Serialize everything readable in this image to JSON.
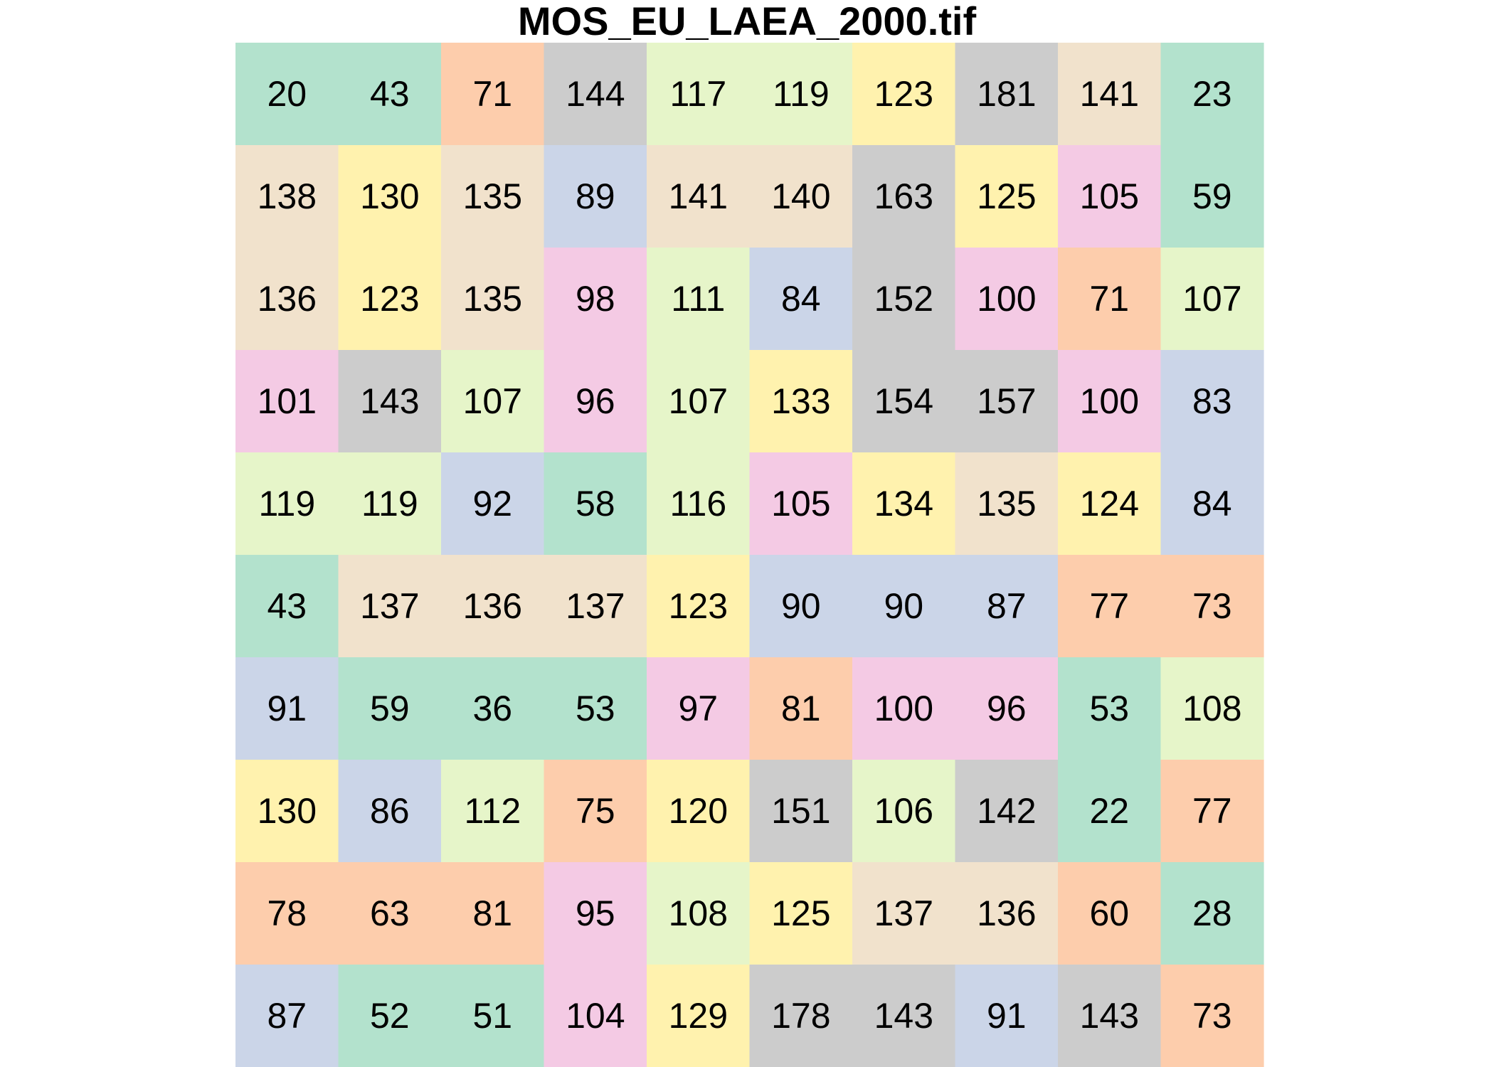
{
  "chart_data": {
    "type": "heatmap",
    "title": "MOS_EU_LAEA_2000.tif",
    "xlabel": "",
    "ylabel": "",
    "grid": false,
    "legend": "none",
    "rows": 10,
    "cols": 10,
    "values": [
      [
        20,
        43,
        71,
        144,
        117,
        119,
        123,
        181,
        141,
        23
      ],
      [
        138,
        130,
        135,
        89,
        141,
        140,
        163,
        125,
        105,
        59
      ],
      [
        136,
        123,
        135,
        98,
        111,
        84,
        152,
        100,
        71,
        107
      ],
      [
        101,
        143,
        107,
        96,
        107,
        133,
        154,
        157,
        100,
        83
      ],
      [
        119,
        119,
        92,
        58,
        116,
        105,
        134,
        135,
        124,
        84
      ],
      [
        43,
        137,
        136,
        137,
        123,
        90,
        90,
        87,
        77,
        73
      ],
      [
        91,
        59,
        36,
        53,
        97,
        81,
        100,
        96,
        53,
        108
      ],
      [
        130,
        86,
        112,
        75,
        120,
        151,
        106,
        142,
        22,
        77
      ],
      [
        78,
        63,
        81,
        95,
        108,
        125,
        137,
        136,
        60,
        28
      ],
      [
        87,
        52,
        51,
        104,
        129,
        178,
        143,
        91,
        143,
        73
      ]
    ],
    "fill_colors": [
      [
        "#b3e2cd",
        "#b3e2cd",
        "#fdcdac",
        "#cccccc",
        "#e6f5c9",
        "#e6f5c9",
        "#fff2ae",
        "#cccccc",
        "#f1e2cc",
        "#b3e2cd"
      ],
      [
        "#f1e2cc",
        "#fff2ae",
        "#f1e2cc",
        "#cbd5e8",
        "#f1e2cc",
        "#f1e2cc",
        "#cccccc",
        "#fff2ae",
        "#f4cae4",
        "#b3e2cd"
      ],
      [
        "#f1e2cc",
        "#fff2ae",
        "#f1e2cc",
        "#f4cae4",
        "#e6f5c9",
        "#cbd5e8",
        "#cccccc",
        "#f4cae4",
        "#fdcdac",
        "#e6f5c9"
      ],
      [
        "#f4cae4",
        "#cccccc",
        "#e6f5c9",
        "#f4cae4",
        "#e6f5c9",
        "#fff2ae",
        "#cccccc",
        "#cccccc",
        "#f4cae4",
        "#cbd5e8"
      ],
      [
        "#e6f5c9",
        "#e6f5c9",
        "#cbd5e8",
        "#b3e2cd",
        "#e6f5c9",
        "#f4cae4",
        "#fff2ae",
        "#f1e2cc",
        "#fff2ae",
        "#cbd5e8"
      ],
      [
        "#b3e2cd",
        "#f1e2cc",
        "#f1e2cc",
        "#f1e2cc",
        "#fff2ae",
        "#cbd5e8",
        "#cbd5e8",
        "#cbd5e8",
        "#fdcdac",
        "#fdcdac"
      ],
      [
        "#cbd5e8",
        "#b3e2cd",
        "#b3e2cd",
        "#b3e2cd",
        "#f4cae4",
        "#fdcdac",
        "#f4cae4",
        "#f4cae4",
        "#b3e2cd",
        "#e6f5c9"
      ],
      [
        "#fff2ae",
        "#cbd5e8",
        "#e6f5c9",
        "#fdcdac",
        "#fff2ae",
        "#cccccc",
        "#e6f5c9",
        "#cccccc",
        "#b3e2cd",
        "#fdcdac"
      ],
      [
        "#fdcdac",
        "#fdcdac",
        "#fdcdac",
        "#f4cae4",
        "#e6f5c9",
        "#fff2ae",
        "#f1e2cc",
        "#f1e2cc",
        "#fdcdac",
        "#b3e2cd"
      ],
      [
        "#cbd5e8",
        "#b3e2cd",
        "#b3e2cd",
        "#f4cae4",
        "#fff2ae",
        "#cccccc",
        "#cccccc",
        "#cbd5e8",
        "#cccccc",
        "#fdcdac"
      ]
    ]
  }
}
